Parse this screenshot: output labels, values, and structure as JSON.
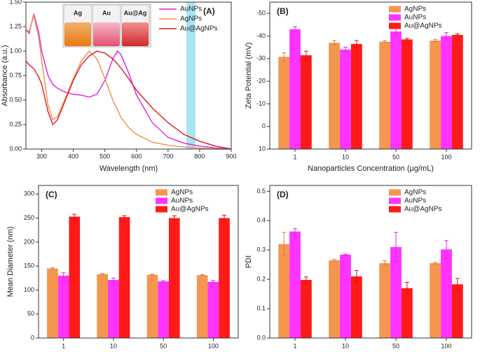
{
  "chart_data": [
    {
      "type": "line",
      "label": "(A)",
      "x_label": "Wavelength (nm)",
      "y_label": "Absorbance (a.u.)",
      "annotations": [
        "Ag",
        "Au",
        "Au@Ag"
      ],
      "x": [
        250,
        260,
        275,
        290,
        300,
        320,
        335,
        350,
        375,
        400,
        425,
        450,
        475,
        500,
        525,
        540,
        550,
        575,
        600,
        650,
        700,
        750,
        800,
        850,
        900
      ],
      "series": [
        {
          "name": "AuNPs",
          "color": "#e020e0",
          "values": [
            1.22,
            1.18,
            1.38,
            1.2,
            1.0,
            0.75,
            0.66,
            0.62,
            0.58,
            0.56,
            0.55,
            0.53,
            0.56,
            0.7,
            0.92,
            1.0,
            0.97,
            0.78,
            0.55,
            0.27,
            0.12,
            0.06,
            0.03,
            0.01,
            0.0
          ]
        },
        {
          "name": "AgNPs",
          "color": "#f0904a",
          "values": [
            1.22,
            1.2,
            1.36,
            1.15,
            0.9,
            0.45,
            0.3,
            0.33,
            0.52,
            0.72,
            0.9,
            1.0,
            0.92,
            0.72,
            0.5,
            0.4,
            0.33,
            0.22,
            0.15,
            0.07,
            0.04,
            0.02,
            0.01,
            0.0,
            0.0
          ]
        },
        {
          "name": "Au@AgNPs",
          "color": "#dd1c1c",
          "values": [
            0.9,
            0.86,
            0.82,
            0.74,
            0.66,
            0.38,
            0.25,
            0.3,
            0.5,
            0.7,
            0.86,
            0.95,
            1.0,
            0.98,
            0.92,
            0.87,
            0.83,
            0.72,
            0.6,
            0.42,
            0.27,
            0.15,
            0.08,
            0.03,
            0.0
          ]
        }
      ],
      "xlim": [
        250,
        900
      ],
      "xticks": [
        300,
        400,
        500,
        600,
        700,
        800,
        900
      ],
      "ylim": [
        0,
        1.5
      ],
      "yticks": [
        {
          "value": 0,
          "label": "0.00"
        },
        {
          "value": 0.25,
          "label": "0.25"
        },
        {
          "value": 0.5,
          "label": "0.50"
        },
        {
          "value": 0.75,
          "label": "0.75"
        },
        {
          "value": 1,
          "label": "1.00"
        },
        {
          "value": 1.25,
          "label": "1.25"
        },
        {
          "value": 1.5,
          "label": "1.50"
        }
      ]
    },
    {
      "type": "bar",
      "label": "(B)",
      "x_label": "Nanoparticles Concentration (µg/mL)",
      "y_label": "Zeta Potential (mV)",
      "categories": [
        "1",
        "10",
        "50",
        "100"
      ],
      "series": [
        {
          "name": "AgNPs",
          "color": "#f5964f",
          "values": [
            -30.8,
            -37,
            -37.5,
            -38
          ],
          "errors": [
            1.8,
            1.0,
            0.5,
            0.5
          ]
        },
        {
          "name": "AuNPs",
          "color": "#ff33ff",
          "values": [
            -43,
            -34,
            -42,
            -40
          ],
          "errors": [
            1.2,
            1.0,
            1.5,
            1.5
          ]
        },
        {
          "name": "Au@AgNPs",
          "color": "#ff1a1a",
          "values": [
            -31.5,
            -36.5,
            -38.5,
            -40.5
          ],
          "errors": [
            1.8,
            1.5,
            0.5,
            0.5
          ]
        }
      ],
      "ylim": [
        10,
        -55
      ],
      "yticks": [
        -50,
        -40,
        -30,
        -20,
        -10,
        0,
        10
      ]
    },
    {
      "type": "bar",
      "label": "(C)",
      "x_label": "Nanoparticles Concentration (µg/mL)",
      "y_label": "Mean Diameter (nm)",
      "categories": [
        "1",
        "10",
        "50",
        "100"
      ],
      "series": [
        {
          "name": "AgNPs",
          "color": "#f5964f",
          "values": [
            145,
            133,
            132,
            131
          ],
          "errors": [
            2,
            1,
            1,
            1
          ]
        },
        {
          "name": "AuNPs",
          "color": "#ff33ff",
          "values": [
            130,
            121,
            118,
            117
          ],
          "errors": [
            6,
            4,
            2,
            3
          ]
        },
        {
          "name": "Au@AgNPs",
          "color": "#ff1a1a",
          "values": [
            253,
            252,
            250,
            250
          ],
          "errors": [
            5,
            3,
            5,
            6
          ]
        }
      ],
      "ylim": [
        0,
        318
      ],
      "yticks": [
        0,
        50,
        100,
        150,
        200,
        250,
        300
      ]
    },
    {
      "type": "bar",
      "label": "(D)",
      "x_label": "Nanoparticles Concentration (µg/mL)",
      "y_label": "PDI",
      "categories": [
        "1",
        "10",
        "50",
        "100"
      ],
      "series": [
        {
          "name": "AgNPs",
          "color": "#f5964f",
          "values": [
            0.32,
            0.265,
            0.255,
            0.255
          ],
          "errors": [
            0.04,
            0.003,
            0.008,
            0.003
          ]
        },
        {
          "name": "AuNPs",
          "color": "#ff33ff",
          "values": [
            0.363,
            0.284,
            0.31,
            0.302
          ],
          "errors": [
            0.01,
            0.002,
            0.05,
            0.03
          ]
        },
        {
          "name": "Au@AgNPs",
          "color": "#ff1a1a",
          "values": [
            0.198,
            0.21,
            0.17,
            0.183
          ],
          "errors": [
            0.01,
            0.02,
            0.02,
            0.02
          ]
        }
      ],
      "ylim": [
        0,
        0.52
      ],
      "yticks": [
        {
          "value": 0,
          "label": "0.0"
        },
        {
          "value": 0.1,
          "label": "0.1"
        },
        {
          "value": 0.2,
          "label": "0.2"
        },
        {
          "value": 0.3,
          "label": "0.3"
        },
        {
          "value": 0.4,
          "label": "0.4"
        },
        {
          "value": 0.5,
          "label": "0.5"
        }
      ]
    }
  ]
}
